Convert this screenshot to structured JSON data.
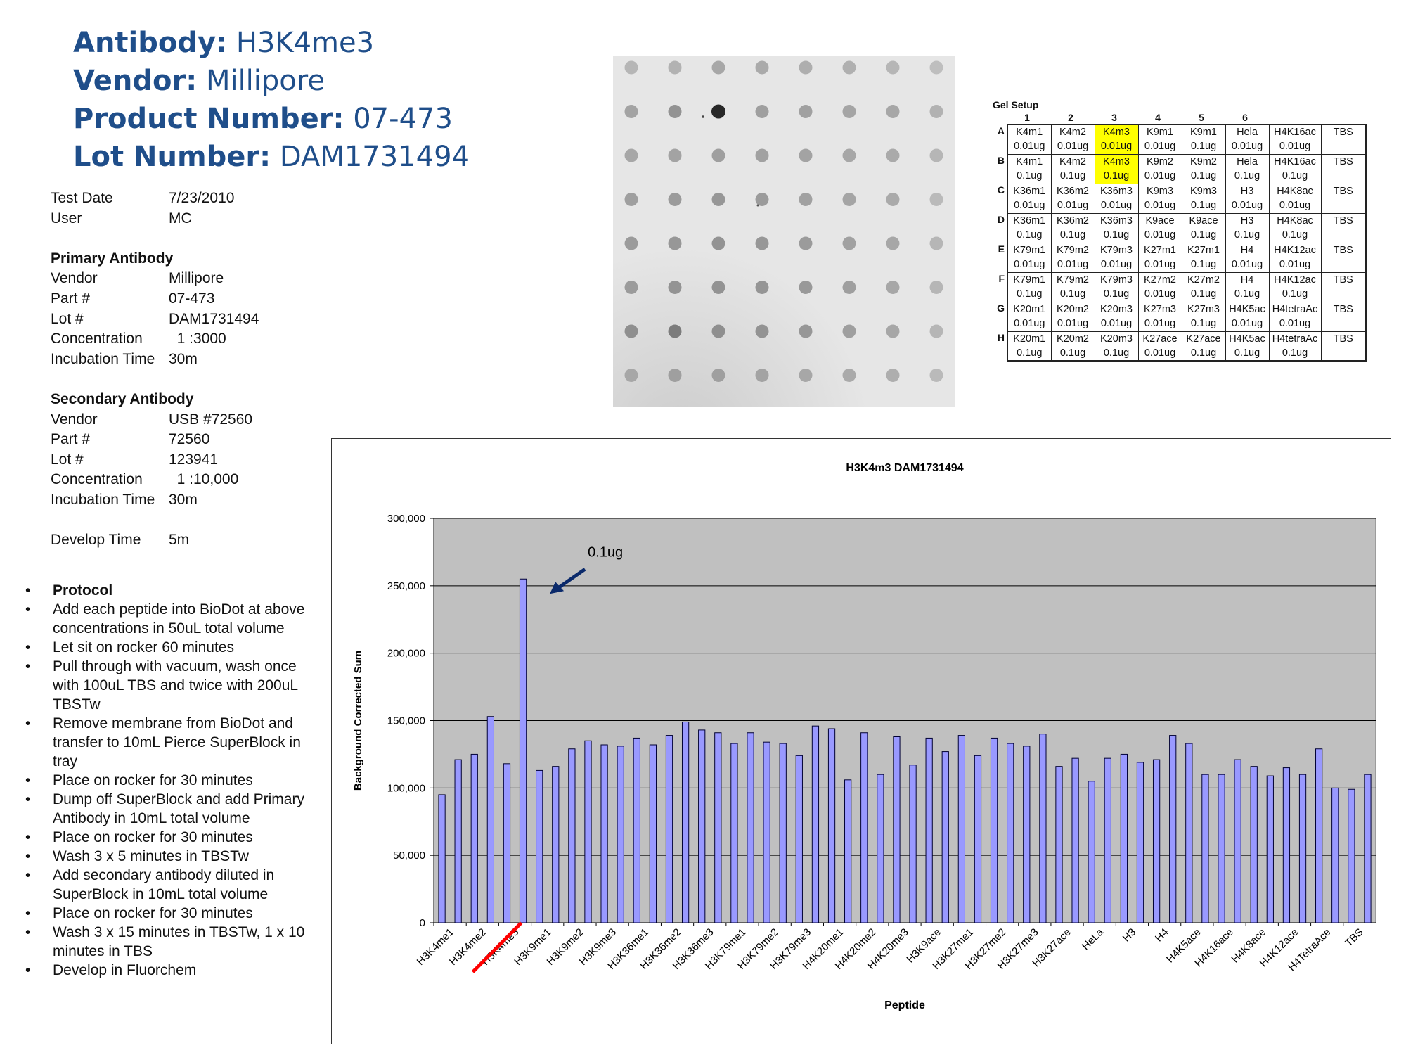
{
  "header": {
    "antibody_label": "Antibody:",
    "antibody_value": "H3K4me3",
    "vendor_label": "Vendor:",
    "vendor_value": "Millipore",
    "product_label": "Product Number:",
    "product_value": "07-473",
    "lot_label": "Lot Number:",
    "lot_value": "DAM1731494"
  },
  "info": {
    "test_date": {
      "label": "Test Date",
      "value": "7/23/2010"
    },
    "user": {
      "label": "User",
      "value": "MC"
    },
    "primary": {
      "title": "Primary Antibody",
      "rows": [
        {
          "label": "Vendor",
          "value": "Millipore"
        },
        {
          "label": "Part #",
          "value": "07-473"
        },
        {
          "label": "Lot #",
          "value": "DAM1731494"
        },
        {
          "label": "Concentration",
          "value": "  1 :3000"
        },
        {
          "label": "Incubation Time",
          "value": "30m"
        }
      ]
    },
    "secondary": {
      "title": "Secondary Antibody",
      "rows": [
        {
          "label": "Vendor",
          "value": "USB #72560"
        },
        {
          "label": "Part #",
          "value": "72560"
        },
        {
          "label": "Lot #",
          "value": "123941"
        },
        {
          "label": "Concentration",
          "value": "  1 :10,000"
        },
        {
          "label": "Incubation Time",
          "value": "30m"
        }
      ]
    },
    "develop": {
      "label": "Develop Time",
      "value": "5m"
    }
  },
  "protocol": {
    "bullet": "•",
    "items": [
      "Protocol",
      "Add each peptide into BioDot at above concentrations in 50uL total volume",
      "Let sit on rocker 60 minutes",
      "Pull through with vacuum, wash once with 100uL TBS and twice with 200uL TBSTw",
      "Remove membrane from BioDot and transfer to 10mL Pierce SuperBlock in tray",
      "Place on rocker for 30 minutes",
      "Dump off SuperBlock and add Primary Antibody in 10mL total volume",
      "Place on rocker for 30 minutes",
      "Wash 3 x 5 minutes in TBSTw",
      "Add secondary antibody diluted in SuperBlock in 10mL total volume",
      "Place on rocker for 30 minutes",
      "Wash 3 x 15 minutes in TBSTw, 1 x 10 minutes in TBS",
      "Develop in Fluorchem"
    ]
  },
  "blot": {
    "rows": 8,
    "cols": 8,
    "intensity": [
      [
        0.22,
        0.24,
        0.3,
        0.28,
        0.26,
        0.25,
        0.22,
        0.18
      ],
      [
        0.32,
        0.4,
        0.95,
        0.34,
        0.33,
        0.31,
        0.3,
        0.24
      ],
      [
        0.3,
        0.32,
        0.34,
        0.33,
        0.32,
        0.3,
        0.28,
        0.22
      ],
      [
        0.34,
        0.36,
        0.38,
        0.36,
        0.33,
        0.31,
        0.28,
        0.2
      ],
      [
        0.36,
        0.38,
        0.4,
        0.38,
        0.36,
        0.33,
        0.3,
        0.22
      ],
      [
        0.36,
        0.4,
        0.4,
        0.39,
        0.37,
        0.34,
        0.3,
        0.22
      ],
      [
        0.42,
        0.52,
        0.42,
        0.4,
        0.38,
        0.34,
        0.3,
        0.22
      ],
      [
        0.3,
        0.34,
        0.34,
        0.32,
        0.3,
        0.28,
        0.26,
        0.2
      ]
    ]
  },
  "gel_setup": {
    "title": "Gel Setup",
    "col_numbers": [
      "1",
      "2",
      "3",
      "4",
      "5",
      "6"
    ],
    "rows": [
      {
        "letter": "A",
        "names": [
          "K4m1",
          "K4m2",
          "K4m3",
          "K9m1",
          "K9m1",
          "Hela",
          "H4K16ac"
        ],
        "amounts": [
          "0.01ug",
          "0.01ug",
          "0.01ug",
          "0.01ug",
          "0.1ug",
          "0.01ug",
          "0.01ug"
        ],
        "tbs": "TBS",
        "highlight": 2
      },
      {
        "letter": "B",
        "names": [
          "K4m1",
          "K4m2",
          "K4m3",
          "K9m2",
          "K9m2",
          "Hela",
          "H4K16ac"
        ],
        "amounts": [
          "0.1ug",
          "0.1ug",
          "0.1ug",
          "0.01ug",
          "0.1ug",
          "0.1ug",
          "0.1ug"
        ],
        "tbs": "TBS",
        "highlight": 2
      },
      {
        "letter": "C",
        "names": [
          "K36m1",
          "K36m2",
          "K36m3",
          "K9m3",
          "K9m3",
          "H3",
          "H4K8ac"
        ],
        "amounts": [
          "0.01ug",
          "0.01ug",
          "0.01ug",
          "0.01ug",
          "0.1ug",
          "0.01ug",
          "0.01ug"
        ],
        "tbs": "TBS",
        "highlight": -1
      },
      {
        "letter": "D",
        "names": [
          "K36m1",
          "K36m2",
          "K36m3",
          "K9ace",
          "K9ace",
          "H3",
          "H4K8ac"
        ],
        "amounts": [
          "0.1ug",
          "0.1ug",
          "0.1ug",
          "0.01ug",
          "0.1ug",
          "0.1ug",
          "0.1ug"
        ],
        "tbs": "TBS",
        "highlight": -1
      },
      {
        "letter": "E",
        "names": [
          "K79m1",
          "K79m2",
          "K79m3",
          "K27m1",
          "K27m1",
          "H4",
          "H4K12ac"
        ],
        "amounts": [
          "0.01ug",
          "0.01ug",
          "0.01ug",
          "0.01ug",
          "0.1ug",
          "0.01ug",
          "0.01ug"
        ],
        "tbs": "TBS",
        "highlight": -1
      },
      {
        "letter": "F",
        "names": [
          "K79m1",
          "K79m2",
          "K79m3",
          "K27m2",
          "K27m2",
          "H4",
          "H4K12ac"
        ],
        "amounts": [
          "0.1ug",
          "0.1ug",
          "0.1ug",
          "0.01ug",
          "0.1ug",
          "0.1ug",
          "0.1ug"
        ],
        "tbs": "TBS",
        "highlight": -1
      },
      {
        "letter": "G",
        "names": [
          "K20m1",
          "K20m2",
          "K20m3",
          "K27m3",
          "K27m3",
          "H4K5ac",
          "H4tetraAc"
        ],
        "amounts": [
          "0.01ug",
          "0.01ug",
          "0.01ug",
          "0.01ug",
          "0.1ug",
          "0.01ug",
          "0.01ug"
        ],
        "tbs": "TBS",
        "highlight": -1
      },
      {
        "letter": "H",
        "names": [
          "K20m1",
          "K20m2",
          "K20m3",
          "K27ace",
          "K27ace",
          "H4K5ac",
          "H4tetraAc"
        ],
        "amounts": [
          "0.1ug",
          "0.1ug",
          "0.1ug",
          "0.01ug",
          "0.1ug",
          "0.1ug",
          "0.1ug"
        ],
        "tbs": "TBS",
        "highlight": -1
      }
    ]
  },
  "chart_data": {
    "type": "bar",
    "title": "H3K4m3 DAM1731494",
    "xlabel": "Peptide",
    "ylabel": "Background Corrected Sum",
    "ylim": [
      0,
      300000
    ],
    "yticks": [
      0,
      50000,
      100000,
      150000,
      200000,
      250000,
      300000
    ],
    "ytick_labels": [
      "0",
      "50,000",
      "100,000",
      "150,000",
      "200,000",
      "250,000",
      "300,000"
    ],
    "grid": true,
    "bar_color": "#9999ff",
    "plot_background": "#c0c0c0",
    "tick_labels": [
      "H3K4me1",
      "H3K4me2",
      "H3K4me3",
      "H3K9me1",
      "H3K9me2",
      "H3K9me3",
      "H3K36me1",
      "H3K36me2",
      "H3K36me3",
      "H3K79me1",
      "H3K79me2",
      "H3K79me3",
      "H4K20me1",
      "H4K20me2",
      "H4K20me3",
      "H3K9ace",
      "H3K27me1",
      "H3K27me2",
      "H3K27me3",
      "H3K27ace",
      "HeLa",
      "H3",
      "H4",
      "H4K5ace",
      "H4K16ace",
      "H4K8ace",
      "H4K12ace",
      "H4TetraAce",
      "TBS"
    ],
    "values": [
      95000,
      121000,
      125000,
      153000,
      118000,
      255000,
      113000,
      116000,
      129000,
      135000,
      132000,
      131000,
      137000,
      132000,
      139000,
      149000,
      143000,
      141000,
      133000,
      141000,
      134000,
      133000,
      124000,
      146000,
      144000,
      106000,
      141000,
      110000,
      138000,
      117000,
      137000,
      127000,
      139000,
      124000,
      137000,
      133000,
      131000,
      140000,
      116000,
      122000,
      105000,
      122000,
      125000,
      119000,
      121000,
      139000,
      133000,
      110000,
      110000,
      121000,
      116000,
      109000,
      115000,
      110000,
      129000,
      100000,
      99000,
      110000
    ],
    "annotation": {
      "text": "0.1ug",
      "target_index": 5
    },
    "highlight_label": "H3K4me3",
    "highlight_color": "#ff0000",
    "arrow_color": "#0b2a6b"
  }
}
